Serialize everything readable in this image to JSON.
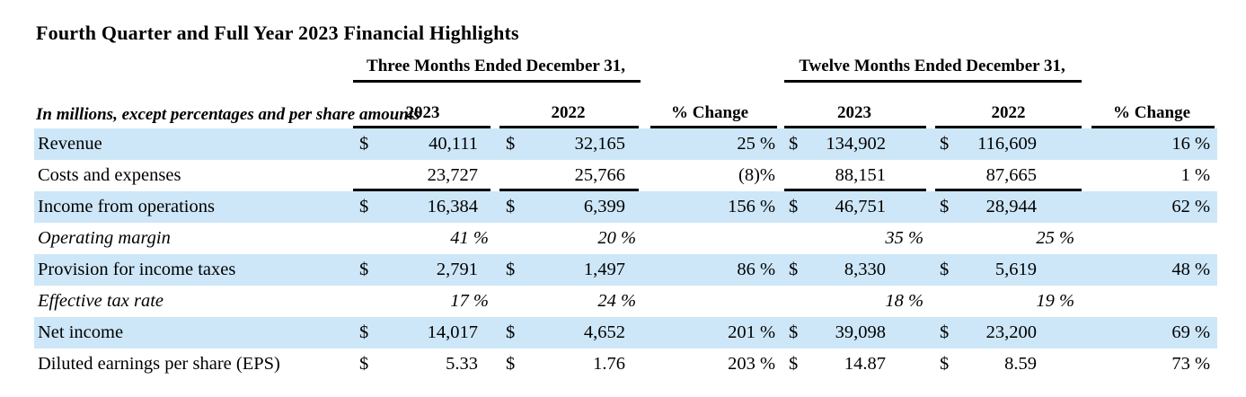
{
  "title": "Fourth Quarter and Full Year 2023 Financial Highlights",
  "note": "In millions, except percentages and per share amounts",
  "colors": {
    "highlight_row": "#CDE7F8",
    "rule": "#000000",
    "text": "#000000"
  },
  "table": {
    "group_headers": [
      "Three Months Ended December 31,",
      "Twelve Months Ended December 31,"
    ],
    "column_headers": [
      "2023",
      "2022",
      "% Change",
      "2023",
      "2022",
      "% Change"
    ],
    "rows": [
      {
        "label": "Revenue",
        "highlight": true,
        "italic": false,
        "rule_below": false,
        "cells": [
          {
            "sym": "$",
            "val": "40,111"
          },
          {
            "sym": "$",
            "val": "32,165"
          },
          {
            "val": "25 %"
          },
          {
            "sym": "$",
            "val": "134,902"
          },
          {
            "sym": "$",
            "val": "116,609"
          },
          {
            "val": "16 %"
          }
        ]
      },
      {
        "label": "Costs and expenses",
        "highlight": false,
        "italic": false,
        "rule_below": true,
        "cells": [
          {
            "val": "23,727"
          },
          {
            "val": "25,766"
          },
          {
            "val": "(8)%"
          },
          {
            "val": "88,151"
          },
          {
            "val": "87,665"
          },
          {
            "val": "1 %"
          }
        ]
      },
      {
        "label": "Income from operations",
        "highlight": true,
        "italic": false,
        "rule_below": false,
        "cells": [
          {
            "sym": "$",
            "val": "16,384"
          },
          {
            "sym": "$",
            "val": "6,399"
          },
          {
            "val": "156 %"
          },
          {
            "sym": "$",
            "val": "46,751"
          },
          {
            "sym": "$",
            "val": "28,944"
          },
          {
            "val": "62 %"
          }
        ]
      },
      {
        "label": "Operating margin",
        "highlight": false,
        "italic": true,
        "rule_below": false,
        "cells": [
          {
            "val": "41 %",
            "pct": true
          },
          {
            "val": "20 %",
            "pct": true
          },
          {
            "val": ""
          },
          {
            "val": "35 %",
            "pct": true
          },
          {
            "val": "25 %",
            "pct": true
          },
          {
            "val": ""
          }
        ]
      },
      {
        "label": "Provision for income taxes",
        "highlight": true,
        "italic": false,
        "rule_below": false,
        "cells": [
          {
            "sym": "$",
            "val": "2,791"
          },
          {
            "sym": "$",
            "val": "1,497"
          },
          {
            "val": "86 %"
          },
          {
            "sym": "$",
            "val": "8,330"
          },
          {
            "sym": "$",
            "val": "5,619"
          },
          {
            "val": "48 %"
          }
        ]
      },
      {
        "label": "Effective tax rate",
        "highlight": false,
        "italic": true,
        "rule_below": false,
        "cells": [
          {
            "val": "17 %",
            "pct": true
          },
          {
            "val": "24 %",
            "pct": true
          },
          {
            "val": ""
          },
          {
            "val": "18 %",
            "pct": true
          },
          {
            "val": "19 %",
            "pct": true
          },
          {
            "val": ""
          }
        ]
      },
      {
        "label": "Net income",
        "highlight": true,
        "italic": false,
        "rule_below": false,
        "cells": [
          {
            "sym": "$",
            "val": "14,017"
          },
          {
            "sym": "$",
            "val": "4,652"
          },
          {
            "val": "201 %"
          },
          {
            "sym": "$",
            "val": "39,098"
          },
          {
            "sym": "$",
            "val": "23,200"
          },
          {
            "val": "69 %"
          }
        ]
      },
      {
        "label": "Diluted earnings per share (EPS)",
        "highlight": false,
        "italic": false,
        "rule_below": false,
        "cells": [
          {
            "sym": "$",
            "val": "5.33"
          },
          {
            "sym": "$",
            "val": "1.76"
          },
          {
            "val": "203 %"
          },
          {
            "sym": "$",
            "val": "14.87"
          },
          {
            "sym": "$",
            "val": "8.59"
          },
          {
            "val": "73 %"
          }
        ]
      }
    ]
  }
}
